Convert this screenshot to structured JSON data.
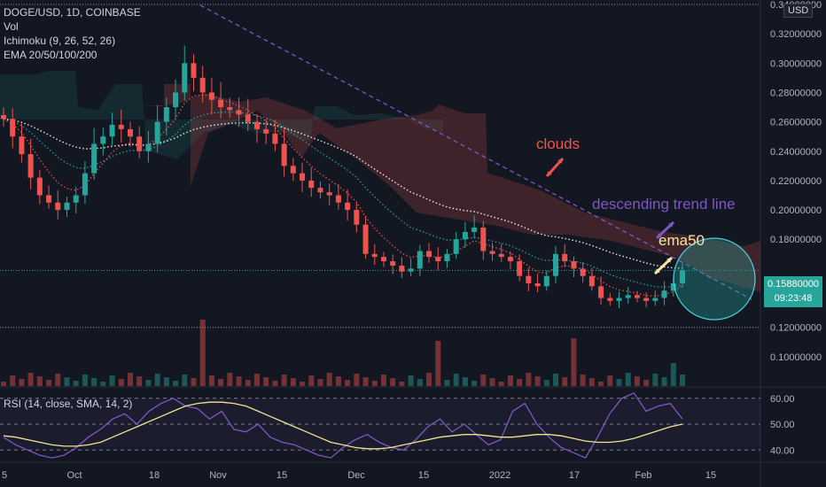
{
  "header": {
    "symbol_line": "DOGE/USD, 1D, COINBASE",
    "vol_label": "Vol",
    "ichimoku_label": "Ichimoku (9, 26, 52, 26)",
    "ema_label": "EMA 20/50/100/200",
    "rsi_label": "RSI (14, close, SMA, 14, 2)",
    "currency": "USD"
  },
  "price_tag": {
    "price": "0.15880000",
    "countdown": "09:23:48"
  },
  "annotations": {
    "clouds": "clouds",
    "trend": "descending trend line",
    "ema50": "ema50"
  },
  "colors": {
    "bg": "#131722",
    "up": "#26a69a",
    "down": "#ef5350",
    "trend_line": "#7e57c2",
    "ema_teal": "#26a69a",
    "ema_red": "#ef5350",
    "rsi": "#7e57c2",
    "rsi_ma": "#f0e68c",
    "clouds_text": "#ef5350",
    "ema50_text": "#f5e6a0"
  },
  "chart_data": [
    {
      "type": "candlestick",
      "symbol": "DOGE/USD",
      "timeframe": "1D",
      "exchange": "COINBASE",
      "x_tick_labels": [
        "5",
        "Oct",
        "18",
        "Nov",
        "15",
        "Dec",
        "15",
        "2022",
        "17",
        "Feb",
        "15"
      ],
      "y_tick_labels": [
        "0.34000000",
        "0.32000000",
        "0.30000000",
        "0.28000000",
        "0.26000000",
        "0.24000000",
        "0.22000000",
        "0.20000000",
        "0.18000000",
        "0.14000000",
        "0.12000000",
        "0.10000000"
      ],
      "ylim": [
        0.08,
        0.34
      ],
      "last_price": 0.1588,
      "close_series": [
        0.262,
        0.25,
        0.238,
        0.222,
        0.21,
        0.205,
        0.2,
        0.205,
        0.21,
        0.225,
        0.245,
        0.25,
        0.258,
        0.255,
        0.25,
        0.24,
        0.245,
        0.26,
        0.27,
        0.28,
        0.3,
        0.29,
        0.28,
        0.275,
        0.27,
        0.268,
        0.265,
        0.26,
        0.255,
        0.252,
        0.245,
        0.23,
        0.225,
        0.22,
        0.215,
        0.212,
        0.21,
        0.205,
        0.2,
        0.19,
        0.17,
        0.168,
        0.165,
        0.162,
        0.158,
        0.16,
        0.172,
        0.168,
        0.165,
        0.17,
        0.18,
        0.185,
        0.188,
        0.172,
        0.17,
        0.168,
        0.165,
        0.155,
        0.15,
        0.148,
        0.155,
        0.17,
        0.165,
        0.16,
        0.155,
        0.148,
        0.14,
        0.138,
        0.14,
        0.142,
        0.14,
        0.138,
        0.14,
        0.145,
        0.15,
        0.1588
      ]
    },
    {
      "type": "line",
      "title": "RSI (14, close, SMA, 14, 2)",
      "y_tick_labels": [
        "60.00",
        "50.00",
        "40.00"
      ],
      "ylim": [
        36,
        63
      ],
      "series": [
        {
          "values": [
            45,
            42,
            40,
            38,
            37,
            38,
            41,
            45,
            48,
            52,
            54,
            50,
            55,
            58,
            60,
            57,
            56,
            52,
            55,
            48,
            47,
            50,
            45,
            43,
            42,
            40,
            38,
            37,
            41,
            44,
            46,
            43,
            41,
            40,
            44,
            49,
            52,
            47,
            50,
            46,
            42,
            44,
            55,
            58,
            50,
            45,
            41,
            39,
            37,
            45,
            54,
            60,
            62,
            55,
            57,
            58,
            52
          ]
        },
        {
          "values": [
            45.5,
            45,
            44,
            43,
            42,
            41.5,
            41.5,
            42,
            43,
            45,
            47,
            49,
            51,
            53,
            55,
            57,
            58,
            58.5,
            58.5,
            58,
            57,
            55,
            53,
            51,
            49,
            47,
            45,
            43,
            42,
            41,
            40.5,
            40.5,
            41,
            42,
            43,
            44,
            45,
            45.5,
            46,
            46,
            45.5,
            45,
            45,
            45.5,
            46,
            46,
            45.5,
            44.5,
            43.5,
            43,
            43,
            43.5,
            44.5,
            46,
            47.5,
            49,
            50
          ]
        }
      ]
    }
  ]
}
